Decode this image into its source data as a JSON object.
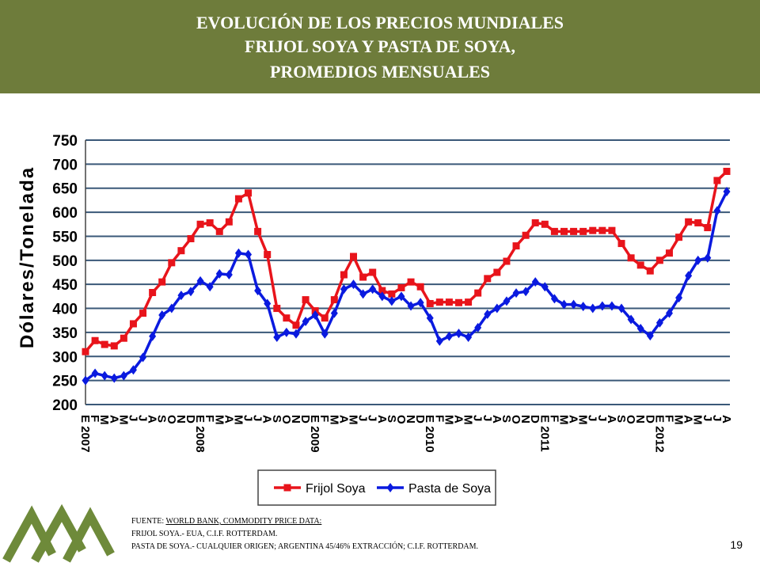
{
  "header": {
    "title_lines": [
      "EVOLUCIÓN DE LOS PRECIOS MUNDIALES",
      "FRIJOL SOYA Y PASTA DE SOYA,",
      "PROMEDIOS MENSUALES"
    ]
  },
  "chart_data": {
    "type": "line",
    "ylabel": "Dólares/Tonelada",
    "categories": [
      "E 2007",
      "F",
      "M",
      "A",
      "M",
      "J",
      "J",
      "A",
      "S",
      "O",
      "N",
      "D",
      "E 2008",
      "F",
      "M",
      "A",
      "M",
      "J",
      "J",
      "A",
      "S",
      "O",
      "N",
      "D",
      "E 2009",
      "F",
      "M",
      "A",
      "M",
      "J",
      "J",
      "A",
      "S",
      "O",
      "N",
      "D",
      "E 2010",
      "F",
      "M",
      "A",
      "M",
      "J",
      "J",
      "A",
      "S",
      "O",
      "N",
      "D",
      "E 2011",
      "F",
      "M",
      "A",
      "M",
      "J",
      "J",
      "A",
      "S",
      "O",
      "N",
      "D",
      "E 2012",
      "F",
      "M",
      "A",
      "M",
      "J",
      "J",
      "A"
    ],
    "series": [
      {
        "name": "Frijol Soya",
        "color": "#e8141b",
        "marker": "square",
        "values": [
          310,
          333,
          325,
          322,
          338,
          368,
          390,
          433,
          455,
          495,
          520,
          545,
          575,
          578,
          560,
          580,
          628,
          640,
          560,
          512,
          400,
          380,
          365,
          418,
          395,
          380,
          418,
          470,
          508,
          465,
          475,
          437,
          430,
          443,
          455,
          445,
          410,
          413,
          413,
          412,
          413,
          432,
          462,
          475,
          498,
          530,
          552,
          578,
          575,
          560,
          560,
          560,
          560,
          562,
          562,
          562,
          535,
          505,
          490,
          478,
          500,
          515,
          548,
          580,
          578,
          568,
          666,
          685
        ]
      },
      {
        "name": "Pasta de Soya",
        "color": "#0a1adf",
        "marker": "diamond",
        "values": [
          250,
          265,
          260,
          255,
          260,
          272,
          298,
          342,
          386,
          400,
          427,
          435,
          457,
          445,
          472,
          470,
          515,
          512,
          437,
          410,
          340,
          350,
          347,
          373,
          386,
          347,
          390,
          440,
          450,
          430,
          440,
          425,
          415,
          425,
          405,
          412,
          380,
          332,
          342,
          348,
          340,
          360,
          388,
          400,
          415,
          432,
          435,
          455,
          445,
          420,
          408,
          408,
          404,
          400,
          405,
          405,
          400,
          377,
          358,
          343,
          370,
          390,
          422,
          468,
          500,
          505,
          603,
          643
        ]
      }
    ],
    "ylim": [
      200,
      750
    ],
    "yticks": [
      200,
      250,
      300,
      350,
      400,
      450,
      500,
      550,
      600,
      650,
      700,
      750
    ],
    "grid": true
  },
  "footer": {
    "source_prefix": "FUENTE:",
    "source_name": "WORLD BANK, COMMODITY PRICE DATA:",
    "lines": [
      "FRIJOL SOYA.- EUA, C.I.F. ROTTERDAM.",
      "PASTA DE SOYA.- CUALQUIER ORIGEN; ARGENTINA 45/46% EXTRACCIÓN; C.I.F. ROTTERDAM."
    ],
    "page": "19"
  }
}
